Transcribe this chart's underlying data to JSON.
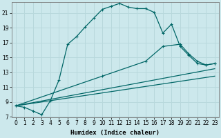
{
  "xlabel": "Humidex (Indice chaleur)",
  "background_color": "#cce8ec",
  "line_color": "#006666",
  "grid_color": "#b8d8dc",
  "xlim": [
    -0.5,
    23.5
  ],
  "ylim": [
    7,
    22.5
  ],
  "xticks": [
    0,
    1,
    2,
    3,
    4,
    5,
    6,
    7,
    8,
    9,
    10,
    11,
    12,
    13,
    14,
    15,
    16,
    17,
    18,
    19,
    20,
    21,
    22,
    23
  ],
  "yticks": [
    7,
    9,
    11,
    13,
    15,
    17,
    19,
    21
  ],
  "line1_x": [
    0,
    1,
    2,
    3,
    4,
    5,
    6,
    7,
    8,
    9,
    10,
    11,
    12,
    13,
    14,
    15,
    16,
    17,
    18,
    19,
    20,
    21,
    22,
    23
  ],
  "line1_y": [
    8.5,
    8.3,
    7.8,
    7.3,
    9.2,
    12.0,
    16.8,
    17.8,
    19.1,
    20.3,
    21.5,
    21.9,
    22.3,
    21.8,
    21.6,
    21.6,
    21.1,
    18.3,
    19.5,
    16.5,
    15.3,
    14.2,
    14.0,
    14.2
  ],
  "line2_x": [
    0,
    10,
    15,
    17,
    19,
    20,
    21,
    22,
    23
  ],
  "line2_y": [
    8.5,
    12.5,
    14.5,
    16.5,
    16.8,
    15.5,
    14.5,
    14.0,
    14.2
  ],
  "line3_x": [
    0,
    23
  ],
  "line3_y": [
    8.5,
    13.5
  ],
  "line4_x": [
    0,
    23
  ],
  "line4_y": [
    8.5,
    12.5
  ]
}
